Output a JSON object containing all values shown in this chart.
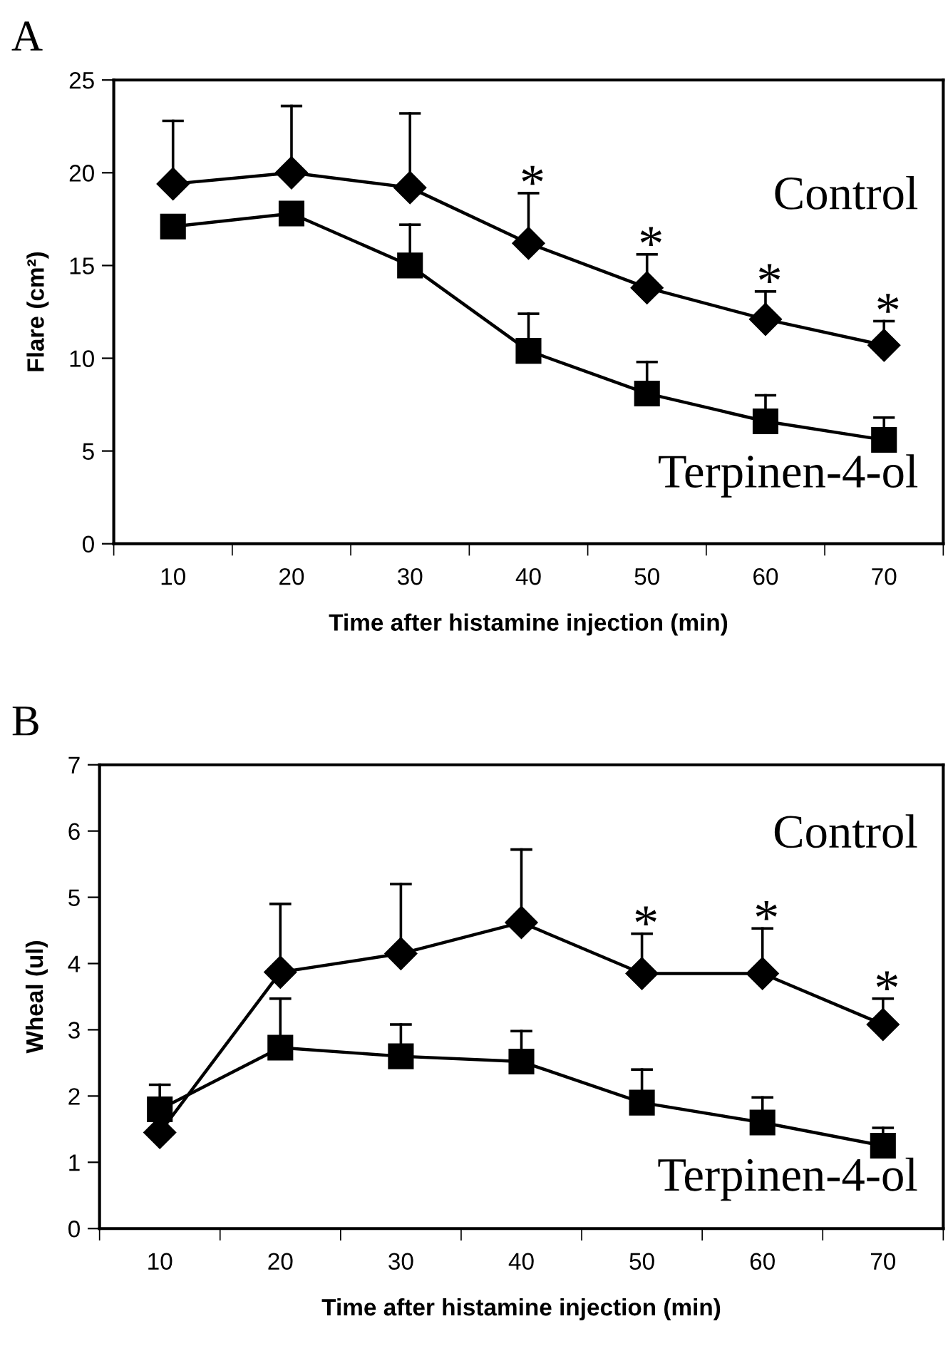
{
  "chart_data": [
    {
      "type": "line",
      "title": "A",
      "xlabel": "Time after histamine injection (min)",
      "ylabel": "Flare (cm²)",
      "categories": [
        "10",
        "20",
        "30",
        "40",
        "50",
        "60",
        "70"
      ],
      "ylim": [
        0,
        25
      ],
      "yticks": [
        0,
        5,
        10,
        15,
        20,
        25
      ],
      "grid": false,
      "legend": false,
      "line_style": "solid",
      "series": [
        {
          "name": "Control",
          "color": "#000000",
          "marker": "diamond",
          "values": [
            19.4,
            20.0,
            19.2,
            16.2,
            13.8,
            12.1,
            10.7
          ],
          "errors": [
            [
              19.4,
              22.8
            ],
            [
              20.0,
              23.6
            ],
            [
              19.2,
              23.2
            ],
            [
              16.2,
              18.9
            ],
            [
              13.8,
              15.6
            ],
            [
              12.1,
              13.6
            ],
            [
              10.7,
              12.0
            ]
          ]
        },
        {
          "name": "Terpinen-4-ol",
          "color": "#000000",
          "marker": "square",
          "values": [
            17.1,
            17.8,
            15.0,
            10.4,
            8.1,
            6.6,
            5.6
          ],
          "errors": [
            null,
            null,
            [
              15.0,
              17.2
            ],
            [
              10.4,
              12.4
            ],
            [
              8.1,
              9.8
            ],
            [
              6.6,
              8.0
            ],
            [
              5.6,
              6.8
            ]
          ]
        }
      ],
      "annotations": [
        {
          "text": "*",
          "x": "40",
          "y": 16.2
        },
        {
          "text": "*",
          "x": "50",
          "y": 13.8
        },
        {
          "text": "*",
          "x": "60",
          "y": 12.1
        },
        {
          "text": "*",
          "x": "70",
          "y": 10.7
        }
      ]
    },
    {
      "type": "line",
      "title": "B",
      "xlabel": "Time after histamine injection (min)",
      "ylabel": "Wheal (ul)",
      "categories": [
        "10",
        "20",
        "30",
        "40",
        "50",
        "60",
        "70"
      ],
      "ylim": [
        0,
        7
      ],
      "yticks": [
        0,
        1,
        2,
        3,
        4,
        5,
        6,
        7
      ],
      "grid": false,
      "legend": false,
      "line_style": "solid",
      "series": [
        {
          "name": "Control",
          "color": "#000000",
          "marker": "diamond",
          "values": [
            1.45,
            3.87,
            4.15,
            4.62,
            3.85,
            3.85,
            3.08
          ],
          "errors": [
            null,
            [
              3.87,
              4.9
            ],
            [
              4.15,
              5.2
            ],
            [
              4.62,
              5.72
            ],
            [
              3.85,
              4.45
            ],
            [
              3.85,
              4.53
            ],
            [
              3.08,
              3.47
            ]
          ]
        },
        {
          "name": "Terpinen-4-ol",
          "color": "#000000",
          "marker": "square",
          "values": [
            1.8,
            2.73,
            2.6,
            2.52,
            1.9,
            1.6,
            1.25
          ],
          "errors": [
            [
              1.8,
              2.17
            ],
            [
              2.73,
              3.47
            ],
            [
              2.6,
              3.08
            ],
            [
              2.52,
              2.98
            ],
            [
              1.9,
              2.4
            ],
            [
              1.6,
              1.98
            ],
            [
              1.25,
              1.52
            ]
          ]
        }
      ],
      "annotations": [
        {
          "text": "*",
          "x": "50",
          "y": 3.85
        },
        {
          "text": "*",
          "x": "60",
          "y": 3.85
        },
        {
          "text": "*",
          "x": "70",
          "y": 3.08
        }
      ]
    }
  ]
}
